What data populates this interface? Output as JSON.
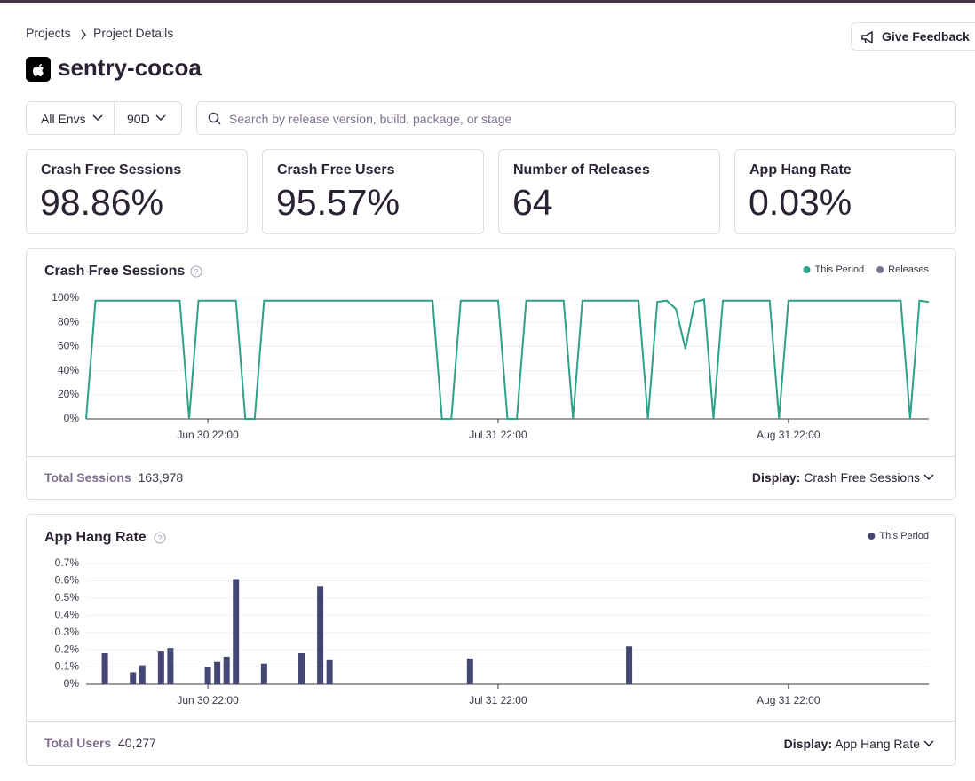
{
  "breadcrumb": [
    "Projects",
    "Project Details"
  ],
  "project": "sentry-cocoa",
  "feedback_button": "Give Feedback",
  "filters": {
    "environment": "All Envs",
    "period": "90D",
    "search_placeholder": "Search by release version, build, package, or stage"
  },
  "stats": [
    {
      "label": "Crash Free Sessions",
      "value": "98.86%"
    },
    {
      "label": "Crash Free Users",
      "value": "95.57%"
    },
    {
      "label": "Number of Releases",
      "value": "64"
    },
    {
      "label": "App Hang Rate",
      "value": "0.03%"
    }
  ],
  "chart_data": [
    {
      "type": "line",
      "title": "Crash Free Sessions",
      "categories": [
        null,
        null,
        null,
        null,
        null,
        null,
        null,
        null,
        null,
        null,
        null,
        null,
        null,
        "Jun 30 22:00",
        null,
        null,
        null,
        null,
        null,
        null,
        null,
        null,
        null,
        null,
        null,
        null,
        null,
        null,
        null,
        null,
        null,
        null,
        null,
        null,
        null,
        null,
        null,
        null,
        null,
        null,
        null,
        null,
        null,
        null,
        "Jul 31 22:00",
        null,
        null,
        null,
        null,
        null,
        null,
        null,
        null,
        null,
        null,
        null,
        null,
        null,
        null,
        null,
        null,
        null,
        null,
        null,
        null,
        null,
        null,
        null,
        null,
        null,
        null,
        null,
        null,
        null,
        null,
        "Aug 31 22:00",
        null,
        null,
        null,
        null,
        null,
        null,
        null,
        null,
        null,
        null,
        null,
        null,
        null,
        null,
        null
      ],
      "series": [
        {
          "name": "This Period",
          "color": "#2ba185",
          "values": [
            0,
            98,
            98,
            98,
            98,
            98,
            98,
            98,
            98,
            98,
            98,
            0,
            98,
            98,
            98,
            98,
            98,
            0,
            0,
            98,
            98,
            98,
            98,
            98,
            98,
            98,
            98,
            98,
            98,
            98,
            98,
            98,
            98,
            98,
            98,
            98,
            98,
            98,
            0,
            0,
            98,
            98,
            98,
            98,
            98,
            0,
            0,
            98,
            98,
            98,
            98,
            98,
            0,
            98,
            98,
            98,
            98,
            98,
            98,
            98,
            0,
            97,
            98,
            91,
            58,
            97,
            99,
            0,
            98,
            98,
            98,
            98,
            98,
            98,
            0,
            98,
            98,
            98,
            98,
            98,
            98,
            98,
            98,
            98,
            98,
            98,
            98,
            98,
            0,
            98,
            97
          ]
        }
      ],
      "legend_extra": [
        {
          "name": "Releases",
          "color": "#80708f"
        }
      ],
      "legend": "top-right",
      "ylim": [
        0,
        100
      ],
      "yticks": [
        {
          "value": 0,
          "label": "0%"
        },
        {
          "value": 20,
          "label": "20%"
        },
        {
          "value": 40,
          "label": "40%"
        },
        {
          "value": 60,
          "label": "60%"
        },
        {
          "value": 80,
          "label": "80%"
        },
        {
          "value": 100,
          "label": "100%"
        }
      ],
      "grid": true,
      "footer": {
        "label": "Total Sessions",
        "value": "163,978"
      },
      "display": {
        "label": "Display:",
        "value": "Crash Free Sessions"
      }
    },
    {
      "type": "bar",
      "title": "App Hang Rate",
      "categories": [
        null,
        null,
        null,
        null,
        null,
        null,
        null,
        null,
        null,
        null,
        null,
        null,
        null,
        "Jun 30 22:00",
        null,
        null,
        null,
        null,
        null,
        null,
        null,
        null,
        null,
        null,
        null,
        null,
        null,
        null,
        null,
        null,
        null,
        null,
        null,
        null,
        null,
        null,
        null,
        null,
        null,
        null,
        null,
        null,
        null,
        null,
        "Jul 31 22:00",
        null,
        null,
        null,
        null,
        null,
        null,
        null,
        null,
        null,
        null,
        null,
        null,
        null,
        null,
        null,
        null,
        null,
        null,
        null,
        null,
        null,
        null,
        null,
        null,
        null,
        null,
        null,
        null,
        null,
        null,
        "Aug 31 22:00",
        null,
        null,
        null,
        null,
        null,
        null,
        null,
        null,
        null,
        null,
        null,
        null,
        null,
        null,
        null
      ],
      "series": [
        {
          "name": "This Period",
          "color": "#444674",
          "values": [
            0,
            0,
            0.18,
            0,
            0,
            0.07,
            0.11,
            0,
            0.19,
            0.21,
            0,
            0,
            0,
            0.1,
            0.13,
            0.16,
            0.61,
            0,
            0,
            0.12,
            0,
            0,
            0,
            0.18,
            0,
            0.57,
            0.14,
            0,
            0,
            0,
            0,
            0,
            0,
            0,
            0,
            0,
            0,
            0,
            0,
            0,
            0,
            0.15,
            0,
            0,
            0,
            0,
            0,
            0,
            0,
            0,
            0,
            0,
            0,
            0,
            0,
            0,
            0,
            0,
            0.22,
            0,
            0,
            0,
            0,
            0,
            0,
            0,
            0,
            0,
            0,
            0,
            0,
            0,
            0,
            0,
            0,
            0,
            0,
            0,
            0,
            0,
            0,
            0,
            0,
            0,
            0,
            0,
            0,
            0,
            0,
            0,
            0
          ]
        }
      ],
      "legend": "top-right",
      "ylim": [
        0,
        0.7
      ],
      "yticks": [
        {
          "value": 0,
          "label": "0%"
        },
        {
          "value": 0.1,
          "label": "0.1%"
        },
        {
          "value": 0.2,
          "label": "0.2%"
        },
        {
          "value": 0.3,
          "label": "0.3%"
        },
        {
          "value": 0.4,
          "label": "0.4%"
        },
        {
          "value": 0.5,
          "label": "0.5%"
        },
        {
          "value": 0.6,
          "label": "0.6%"
        },
        {
          "value": 0.7,
          "label": "0.7%"
        }
      ],
      "grid": true,
      "footer": {
        "label": "Total Users",
        "value": "40,277"
      },
      "display": {
        "label": "Display:",
        "value": "App Hang Rate"
      }
    }
  ]
}
